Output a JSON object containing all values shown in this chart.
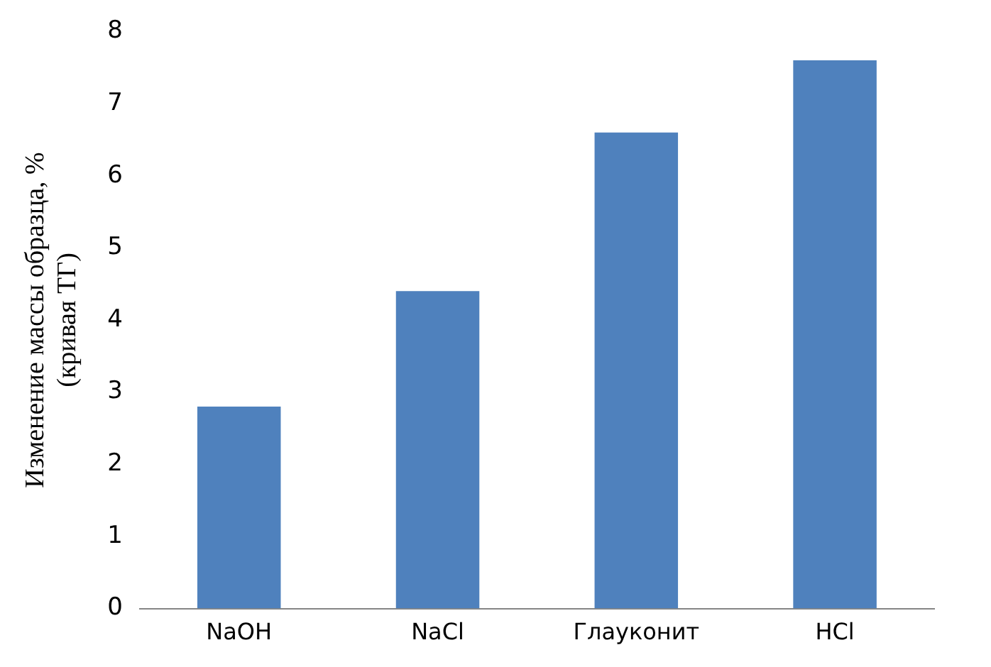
{
  "chart_data": {
    "type": "bar",
    "ylabel": "Изменение массы образца, %\n(кривая ТГ)",
    "categories": [
      "NaOH",
      "NaCl",
      "Глауконит",
      "HCl"
    ],
    "values": [
      2.8,
      4.4,
      6.6,
      7.6
    ],
    "color": "#4f81bd",
    "ylim": [
      0,
      8
    ],
    "yticks": [
      0,
      1,
      2,
      3,
      4,
      5,
      6,
      7,
      8
    ],
    "grid": false,
    "legend": false
  }
}
